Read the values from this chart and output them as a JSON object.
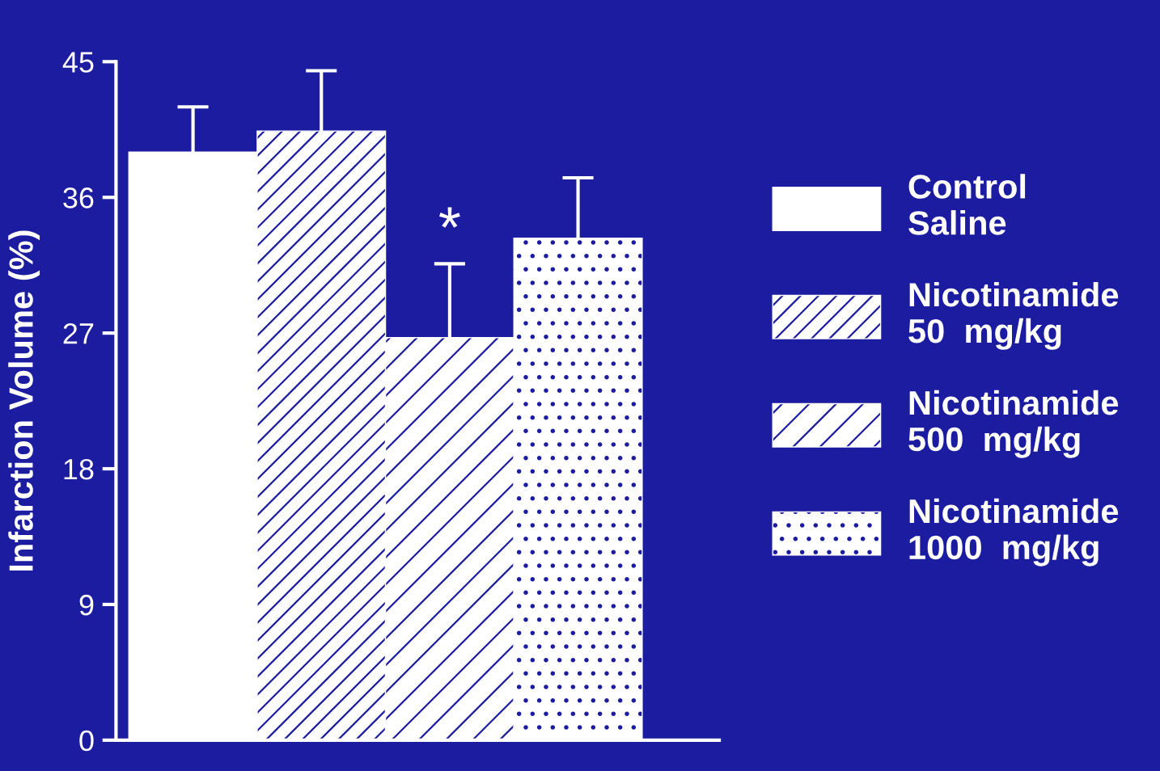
{
  "chart_data": {
    "type": "bar",
    "ylabel": "Infarction Volume (%)",
    "categories": [
      null,
      null,
      null,
      null
    ],
    "ylim": [
      0,
      45
    ],
    "yticks": [
      0,
      9,
      18,
      27,
      36,
      45
    ],
    "grid": false,
    "legend": "right",
    "series": [
      {
        "name": "Control\nSaline",
        "color": "#ffffff",
        "values": [
          39,
          null,
          null,
          null
        ],
        "errors": [
          [
            39,
            42
          ],
          null,
          null,
          null
        ]
      },
      {
        "name": "Nicotinamide\n50  mg/kg",
        "color": "#ffffff",
        "values": [
          null,
          40.4,
          null,
          null
        ],
        "errors": [
          null,
          [
            40.4,
            44.4
          ],
          null,
          null
        ]
      },
      {
        "name": "Nicotinamide\n500  mg/kg",
        "color": "#ffffff",
        "values": [
          null,
          null,
          26.7,
          null
        ],
        "errors": [
          null,
          null,
          [
            26.7,
            31.6
          ],
          null
        ]
      },
      {
        "name": "Nicotinamide\n1000  mg/kg",
        "color": "#ffffff",
        "values": [
          null,
          null,
          null,
          33.3
        ],
        "errors": [
          null,
          null,
          null,
          [
            33.3,
            37.3
          ]
        ]
      }
    ],
    "annotations": [
      "*"
    ]
  }
}
